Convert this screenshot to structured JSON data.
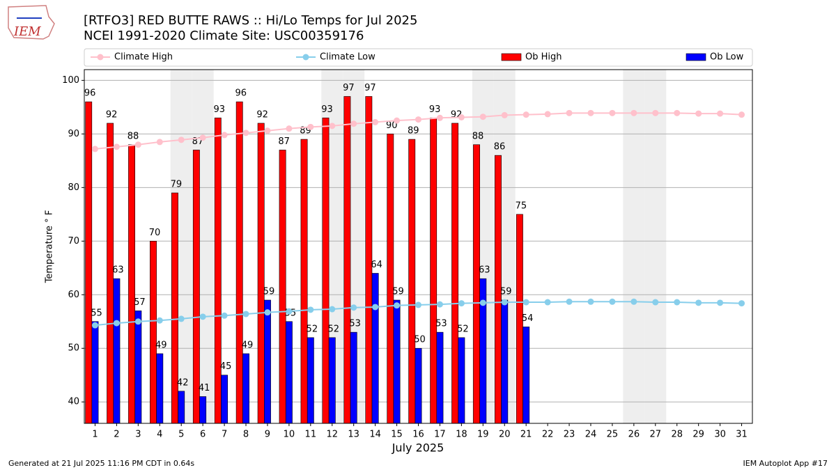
{
  "logo_text": "IEM",
  "footer_left": "Generated at 21 Jul 2025 11:16 PM CDT in 0.64s",
  "footer_right": "IEM Autoplot App #17",
  "chart_data": {
    "type": "bar",
    "title": "[RTFO3] RED BUTTE RAWS :: Hi/Lo Temps for Jul 2025",
    "subtitle": "NCEI 1991-2020 Climate Site: USC00359176",
    "xlabel": "July 2025",
    "ylabel": "Temperature ° F",
    "x": [
      1,
      2,
      3,
      4,
      5,
      6,
      7,
      8,
      9,
      10,
      11,
      12,
      13,
      14,
      15,
      16,
      17,
      18,
      19,
      20,
      21,
      22,
      23,
      24,
      25,
      26,
      27,
      28,
      29,
      30,
      31
    ],
    "xlim": [
      0.5,
      31.5
    ],
    "xticks": [
      1,
      2,
      3,
      4,
      5,
      6,
      7,
      8,
      9,
      10,
      11,
      12,
      13,
      14,
      15,
      16,
      17,
      18,
      19,
      20,
      21,
      22,
      23,
      24,
      25,
      26,
      27,
      28,
      29,
      30,
      31
    ],
    "ylim": [
      36,
      102
    ],
    "yticks": [
      40,
      50,
      60,
      70,
      80,
      90,
      100
    ],
    "grid": true,
    "shaded_days": [
      5,
      6,
      12,
      13,
      19,
      20,
      26,
      27
    ],
    "series": [
      {
        "name": "Climate High",
        "type": "line",
        "color": "#ffc0cb",
        "values": [
          87.2,
          87.6,
          88.0,
          88.5,
          88.9,
          89.3,
          89.8,
          90.2,
          90.6,
          91.0,
          91.3,
          91.5,
          91.9,
          92.2,
          92.5,
          92.7,
          93.0,
          93.1,
          93.2,
          93.5,
          93.6,
          93.7,
          93.9,
          93.9,
          93.9,
          93.9,
          93.9,
          93.9,
          93.8,
          93.8,
          93.6
        ]
      },
      {
        "name": "Climate Low",
        "type": "line",
        "color": "#87ceeb",
        "values": [
          54.3,
          54.7,
          55.0,
          55.2,
          55.5,
          55.9,
          56.1,
          56.4,
          56.7,
          56.9,
          57.2,
          57.3,
          57.6,
          57.7,
          58.0,
          58.1,
          58.2,
          58.4,
          58.5,
          58.6,
          58.6,
          58.6,
          58.7,
          58.7,
          58.7,
          58.7,
          58.6,
          58.6,
          58.5,
          58.5,
          58.4
        ]
      },
      {
        "name": "Ob High",
        "type": "bar",
        "color": "#ff0000",
        "values": [
          96,
          92,
          88,
          70,
          79,
          87,
          93,
          96,
          92,
          87,
          89,
          93,
          97,
          97,
          90,
          89,
          93,
          92,
          88,
          86,
          75,
          null,
          null,
          null,
          null,
          null,
          null,
          null,
          null,
          null,
          null
        ]
      },
      {
        "name": "Ob Low",
        "type": "bar",
        "color": "#0000ff",
        "values": [
          55,
          63,
          57,
          49,
          42,
          41,
          45,
          49,
          59,
          55,
          52,
          52,
          53,
          64,
          59,
          50,
          53,
          52,
          63,
          59,
          54,
          null,
          null,
          null,
          null,
          null,
          null,
          null,
          null,
          null,
          null
        ]
      }
    ]
  }
}
